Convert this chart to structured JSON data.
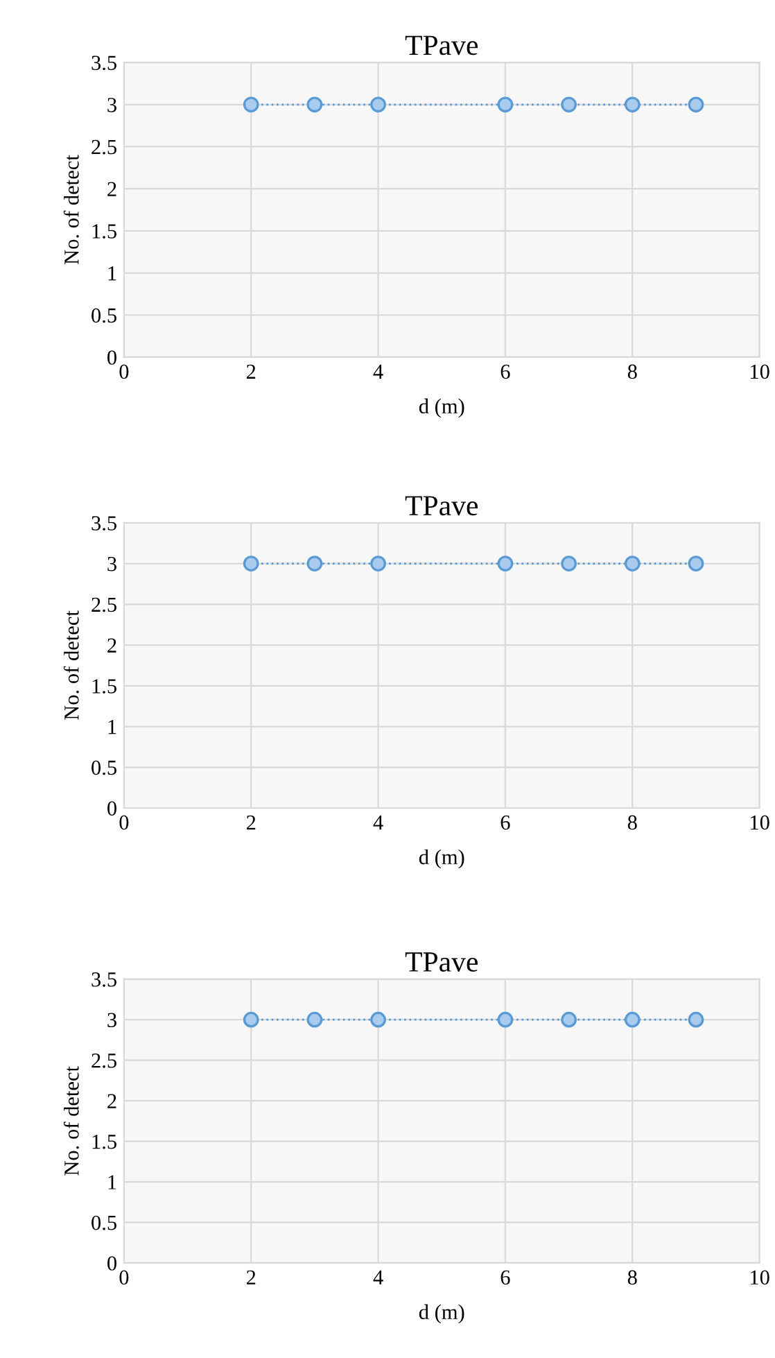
{
  "chart_data": [
    {
      "type": "line",
      "title": "TPave",
      "xlabel": "d (m)",
      "ylabel": "No. of detect",
      "x": [
        2,
        3,
        4,
        6,
        7,
        8,
        9
      ],
      "series": [
        {
          "color": "#5b9bd5",
          "values": [
            3,
            3,
            3,
            3,
            3,
            3,
            3
          ]
        }
      ],
      "xlim": [
        0,
        10
      ],
      "xticks": [
        0,
        2,
        4,
        6,
        8,
        10
      ],
      "ylim": [
        0,
        3.5
      ],
      "yticks": [
        0,
        0.5,
        1,
        1.5,
        2,
        2.5,
        3,
        3.5
      ],
      "grid": true,
      "marker": "circle",
      "line_style": "dotted"
    },
    {
      "type": "line",
      "title": "TPave",
      "xlabel": "d (m)",
      "ylabel": "No. of detect",
      "x": [
        2,
        3,
        4,
        6,
        7,
        8,
        9
      ],
      "series": [
        {
          "color": "#5b9bd5",
          "values": [
            3,
            3,
            3,
            3,
            3,
            3,
            3
          ]
        }
      ],
      "xlim": [
        0,
        10
      ],
      "xticks": [
        0,
        2,
        4,
        6,
        8,
        10
      ],
      "ylim": [
        0,
        3.5
      ],
      "yticks": [
        0,
        0.5,
        1,
        1.5,
        2,
        2.5,
        3,
        3.5
      ],
      "grid": true,
      "marker": "circle",
      "line_style": "dotted"
    },
    {
      "type": "line",
      "title": "TPave",
      "xlabel": "d (m)",
      "ylabel": "No. of detect",
      "x": [
        2,
        3,
        4,
        6,
        7,
        8,
        9
      ],
      "series": [
        {
          "color": "#5b9bd5",
          "values": [
            3,
            3,
            3,
            3,
            3,
            3,
            3
          ]
        }
      ],
      "xlim": [
        0,
        10
      ],
      "xticks": [
        0,
        2,
        4,
        6,
        8,
        10
      ],
      "ylim": [
        0,
        3.5
      ],
      "yticks": [
        0,
        0.5,
        1,
        1.5,
        2,
        2.5,
        3,
        3.5
      ],
      "grid": true,
      "marker": "circle",
      "line_style": "dotted"
    }
  ]
}
